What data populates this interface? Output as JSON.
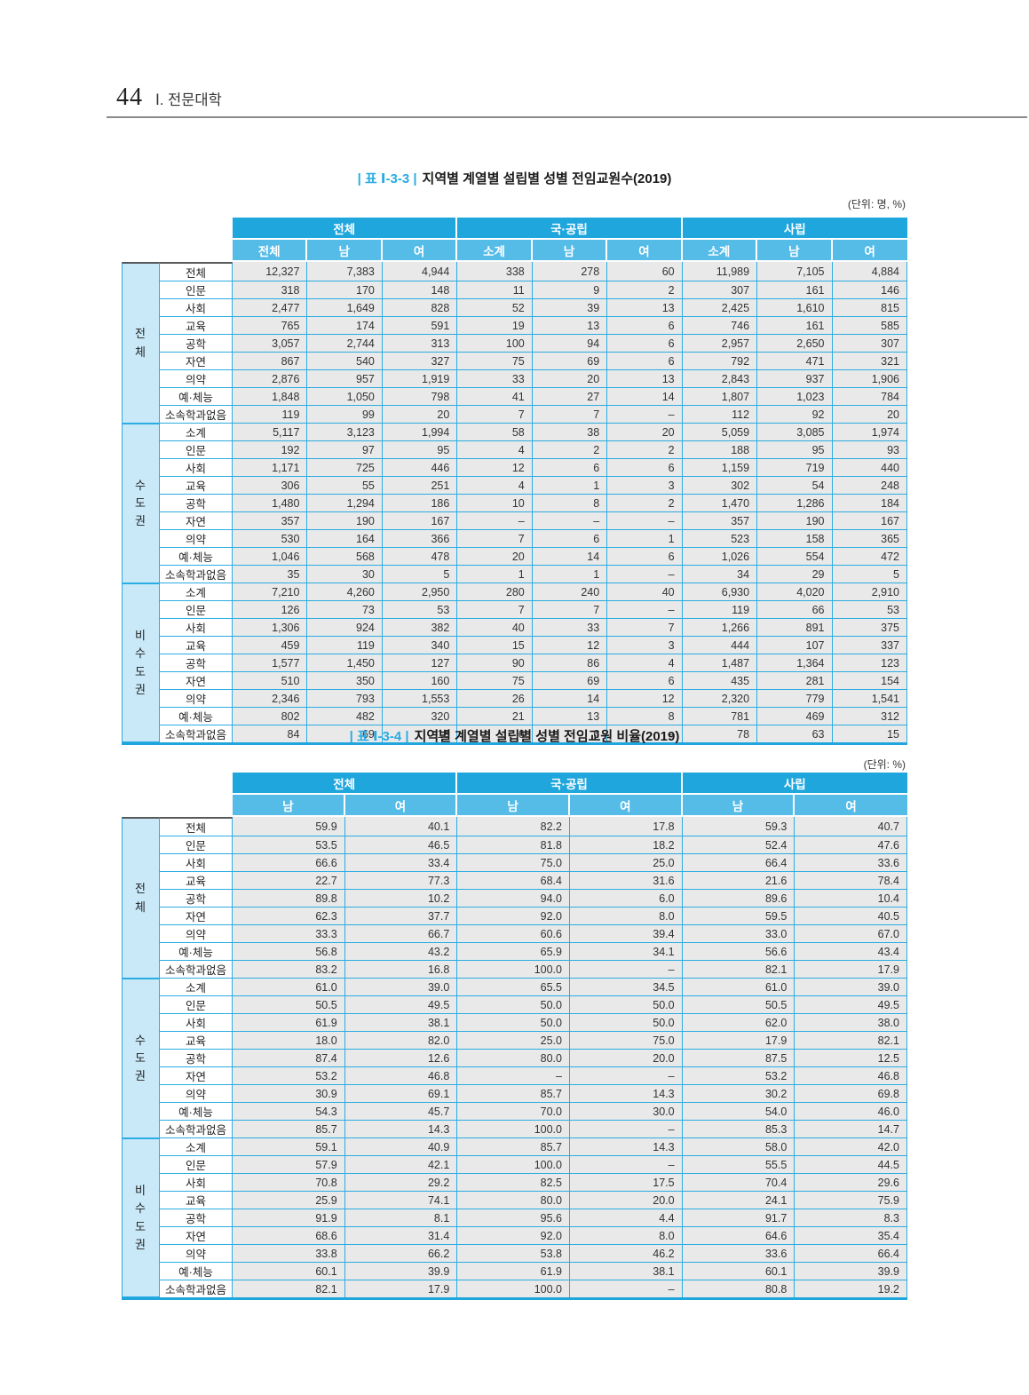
{
  "page": {
    "number": "44",
    "section": "Ⅰ. 전문대학"
  },
  "tables": [
    {
      "tag": "| 표 Ⅰ-3-3 |",
      "title": "지역별 계열별 설립별 성별 전임교원수(2019)",
      "unit": "(단위: 명, %)",
      "column_groups": [
        "전체",
        "국·공립",
        "사립"
      ],
      "sub_headers": [
        "전체",
        "남",
        "여",
        "소계",
        "남",
        "여",
        "소계",
        "남",
        "여"
      ],
      "row_groups": [
        {
          "label": "전체",
          "rows": [
            {
              "label": "전체",
              "values": [
                "12,327",
                "7,383",
                "4,944",
                "338",
                "278",
                "60",
                "11,989",
                "7,105",
                "4,884"
              ]
            },
            {
              "label": "인문",
              "values": [
                "318",
                "170",
                "148",
                "11",
                "9",
                "2",
                "307",
                "161",
                "146"
              ]
            },
            {
              "label": "사회",
              "values": [
                "2,477",
                "1,649",
                "828",
                "52",
                "39",
                "13",
                "2,425",
                "1,610",
                "815"
              ]
            },
            {
              "label": "교육",
              "values": [
                "765",
                "174",
                "591",
                "19",
                "13",
                "6",
                "746",
                "161",
                "585"
              ]
            },
            {
              "label": "공학",
              "values": [
                "3,057",
                "2,744",
                "313",
                "100",
                "94",
                "6",
                "2,957",
                "2,650",
                "307"
              ]
            },
            {
              "label": "자연",
              "values": [
                "867",
                "540",
                "327",
                "75",
                "69",
                "6",
                "792",
                "471",
                "321"
              ]
            },
            {
              "label": "의약",
              "values": [
                "2,876",
                "957",
                "1,919",
                "33",
                "20",
                "13",
                "2,843",
                "937",
                "1,906"
              ]
            },
            {
              "label": "예·체능",
              "values": [
                "1,848",
                "1,050",
                "798",
                "41",
                "27",
                "14",
                "1,807",
                "1,023",
                "784"
              ]
            },
            {
              "label": "소속학과없음",
              "values": [
                "119",
                "99",
                "20",
                "7",
                "7",
                "–",
                "112",
                "92",
                "20"
              ]
            }
          ]
        },
        {
          "label": "수도권",
          "rows": [
            {
              "label": "소계",
              "values": [
                "5,117",
                "3,123",
                "1,994",
                "58",
                "38",
                "20",
                "5,059",
                "3,085",
                "1,974"
              ]
            },
            {
              "label": "인문",
              "values": [
                "192",
                "97",
                "95",
                "4",
                "2",
                "2",
                "188",
                "95",
                "93"
              ]
            },
            {
              "label": "사회",
              "values": [
                "1,171",
                "725",
                "446",
                "12",
                "6",
                "6",
                "1,159",
                "719",
                "440"
              ]
            },
            {
              "label": "교육",
              "values": [
                "306",
                "55",
                "251",
                "4",
                "1",
                "3",
                "302",
                "54",
                "248"
              ]
            },
            {
              "label": "공학",
              "values": [
                "1,480",
                "1,294",
                "186",
                "10",
                "8",
                "2",
                "1,470",
                "1,286",
                "184"
              ]
            },
            {
              "label": "자연",
              "values": [
                "357",
                "190",
                "167",
                "–",
                "–",
                "–",
                "357",
                "190",
                "167"
              ]
            },
            {
              "label": "의약",
              "values": [
                "530",
                "164",
                "366",
                "7",
                "6",
                "1",
                "523",
                "158",
                "365"
              ]
            },
            {
              "label": "예·체능",
              "values": [
                "1,046",
                "568",
                "478",
                "20",
                "14",
                "6",
                "1,026",
                "554",
                "472"
              ]
            },
            {
              "label": "소속학과없음",
              "values": [
                "35",
                "30",
                "5",
                "1",
                "1",
                "–",
                "34",
                "29",
                "5"
              ]
            }
          ]
        },
        {
          "label": "비수도권",
          "rows": [
            {
              "label": "소계",
              "values": [
                "7,210",
                "4,260",
                "2,950",
                "280",
                "240",
                "40",
                "6,930",
                "4,020",
                "2,910"
              ]
            },
            {
              "label": "인문",
              "values": [
                "126",
                "73",
                "53",
                "7",
                "7",
                "–",
                "119",
                "66",
                "53"
              ]
            },
            {
              "label": "사회",
              "values": [
                "1,306",
                "924",
                "382",
                "40",
                "33",
                "7",
                "1,266",
                "891",
                "375"
              ]
            },
            {
              "label": "교육",
              "values": [
                "459",
                "119",
                "340",
                "15",
                "12",
                "3",
                "444",
                "107",
                "337"
              ]
            },
            {
              "label": "공학",
              "values": [
                "1,577",
                "1,450",
                "127",
                "90",
                "86",
                "4",
                "1,487",
                "1,364",
                "123"
              ]
            },
            {
              "label": "자연",
              "values": [
                "510",
                "350",
                "160",
                "75",
                "69",
                "6",
                "435",
                "281",
                "154"
              ]
            },
            {
              "label": "의약",
              "values": [
                "2,346",
                "793",
                "1,553",
                "26",
                "14",
                "12",
                "2,320",
                "779",
                "1,541"
              ]
            },
            {
              "label": "예·체능",
              "values": [
                "802",
                "482",
                "320",
                "21",
                "13",
                "8",
                "781",
                "469",
                "312"
              ]
            },
            {
              "label": "소속학과없음",
              "values": [
                "84",
                "69",
                "15",
                "6",
                "6",
                "–",
                "78",
                "63",
                "15"
              ]
            }
          ]
        }
      ]
    },
    {
      "tag": "| 표 Ⅰ-3-4 |",
      "title": "지역별 계열별 설립별 성별 전임교원 비율(2019)",
      "unit": "(단위: %)",
      "column_groups": [
        "전체",
        "국·공립",
        "사립"
      ],
      "sub_headers": [
        "남",
        "여",
        "남",
        "여",
        "남",
        "여"
      ],
      "row_groups": [
        {
          "label": "전체",
          "rows": [
            {
              "label": "전체",
              "values": [
                "59.9",
                "40.1",
                "82.2",
                "17.8",
                "59.3",
                "40.7"
              ]
            },
            {
              "label": "인문",
              "values": [
                "53.5",
                "46.5",
                "81.8",
                "18.2",
                "52.4",
                "47.6"
              ]
            },
            {
              "label": "사회",
              "values": [
                "66.6",
                "33.4",
                "75.0",
                "25.0",
                "66.4",
                "33.6"
              ]
            },
            {
              "label": "교육",
              "values": [
                "22.7",
                "77.3",
                "68.4",
                "31.6",
                "21.6",
                "78.4"
              ]
            },
            {
              "label": "공학",
              "values": [
                "89.8",
                "10.2",
                "94.0",
                "6.0",
                "89.6",
                "10.4"
              ]
            },
            {
              "label": "자연",
              "values": [
                "62.3",
                "37.7",
                "92.0",
                "8.0",
                "59.5",
                "40.5"
              ]
            },
            {
              "label": "의약",
              "values": [
                "33.3",
                "66.7",
                "60.6",
                "39.4",
                "33.0",
                "67.0"
              ]
            },
            {
              "label": "예·체능",
              "values": [
                "56.8",
                "43.2",
                "65.9",
                "34.1",
                "56.6",
                "43.4"
              ]
            },
            {
              "label": "소속학과없음",
              "values": [
                "83.2",
                "16.8",
                "100.0",
                "–",
                "82.1",
                "17.9"
              ]
            }
          ]
        },
        {
          "label": "수도권",
          "rows": [
            {
              "label": "소계",
              "values": [
                "61.0",
                "39.0",
                "65.5",
                "34.5",
                "61.0",
                "39.0"
              ]
            },
            {
              "label": "인문",
              "values": [
                "50.5",
                "49.5",
                "50.0",
                "50.0",
                "50.5",
                "49.5"
              ]
            },
            {
              "label": "사회",
              "values": [
                "61.9",
                "38.1",
                "50.0",
                "50.0",
                "62.0",
                "38.0"
              ]
            },
            {
              "label": "교육",
              "values": [
                "18.0",
                "82.0",
                "25.0",
                "75.0",
                "17.9",
                "82.1"
              ]
            },
            {
              "label": "공학",
              "values": [
                "87.4",
                "12.6",
                "80.0",
                "20.0",
                "87.5",
                "12.5"
              ]
            },
            {
              "label": "자연",
              "values": [
                "53.2",
                "46.8",
                "–",
                "–",
                "53.2",
                "46.8"
              ]
            },
            {
              "label": "의약",
              "values": [
                "30.9",
                "69.1",
                "85.7",
                "14.3",
                "30.2",
                "69.8"
              ]
            },
            {
              "label": "예·체능",
              "values": [
                "54.3",
                "45.7",
                "70.0",
                "30.0",
                "54.0",
                "46.0"
              ]
            },
            {
              "label": "소속학과없음",
              "values": [
                "85.7",
                "14.3",
                "100.0",
                "–",
                "85.3",
                "14.7"
              ]
            }
          ]
        },
        {
          "label": "비수도권",
          "rows": [
            {
              "label": "소계",
              "values": [
                "59.1",
                "40.9",
                "85.7",
                "14.3",
                "58.0",
                "42.0"
              ]
            },
            {
              "label": "인문",
              "values": [
                "57.9",
                "42.1",
                "100.0",
                "–",
                "55.5",
                "44.5"
              ]
            },
            {
              "label": "사회",
              "values": [
                "70.8",
                "29.2",
                "82.5",
                "17.5",
                "70.4",
                "29.6"
              ]
            },
            {
              "label": "교육",
              "values": [
                "25.9",
                "74.1",
                "80.0",
                "20.0",
                "24.1",
                "75.9"
              ]
            },
            {
              "label": "공학",
              "values": [
                "91.9",
                "8.1",
                "95.6",
                "4.4",
                "91.7",
                "8.3"
              ]
            },
            {
              "label": "자연",
              "values": [
                "68.6",
                "31.4",
                "92.0",
                "8.0",
                "64.6",
                "35.4"
              ]
            },
            {
              "label": "의약",
              "values": [
                "33.8",
                "66.2",
                "53.8",
                "46.2",
                "33.6",
                "66.4"
              ]
            },
            {
              "label": "예·체능",
              "values": [
                "60.1",
                "39.9",
                "61.9",
                "38.1",
                "60.1",
                "39.9"
              ]
            },
            {
              "label": "소속학과없음",
              "values": [
                "82.1",
                "17.9",
                "100.0",
                "–",
                "80.8",
                "19.2"
              ]
            }
          ]
        }
      ]
    }
  ],
  "colors": {
    "header_dark": "#1fa6dd",
    "header_light": "#55bce8",
    "group_stub": "#c9e8f8",
    "data_cell": "#e9e9e9",
    "grid_line": "#2bace2"
  }
}
